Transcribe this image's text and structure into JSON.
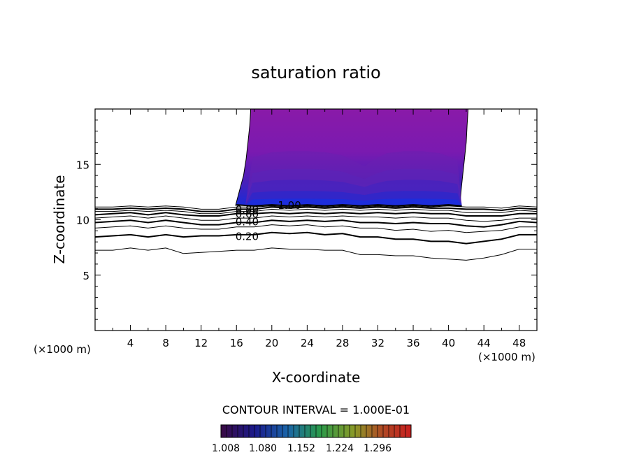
{
  "chart_data": {
    "type": "contour",
    "title": "saturation ratio",
    "xlabel": "X-coordinate",
    "ylabel": "Z-coordinate",
    "x_unit": "(×1000 m)",
    "y_unit": "(×1000 m)",
    "xlim": [
      0,
      50
    ],
    "ylim": [
      0,
      20
    ],
    "x_ticks": [
      4,
      8,
      12,
      16,
      20,
      24,
      28,
      32,
      36,
      40,
      44,
      48
    ],
    "y_ticks": [
      5,
      10,
      15
    ],
    "contour_interval_label": "CONTOUR INTERVAL = 1.000E-01",
    "contour_labels": [
      {
        "text": "1.00",
        "x": 22.0,
        "y": 11.3
      },
      {
        "text": "0.80",
        "x": 17.2,
        "y": 10.9
      },
      {
        "text": "0.60",
        "x": 17.2,
        "y": 10.5
      },
      {
        "text": "0.40",
        "x": 17.2,
        "y": 9.8
      },
      {
        "text": "0.20",
        "x": 17.2,
        "y": 8.5
      }
    ],
    "contour_levels": [
      {
        "level": 0.1,
        "weight": "thin",
        "x": [
          0,
          2,
          4,
          6,
          8,
          10,
          12,
          14,
          16,
          18,
          20,
          22,
          24,
          26,
          28,
          30,
          32,
          34,
          36,
          38,
          40,
          42,
          44,
          46,
          48,
          50
        ],
        "z": [
          7.2,
          7.3,
          7.4,
          7.3,
          7.4,
          7.0,
          7.0,
          7.2,
          7.2,
          7.3,
          7.4,
          7.4,
          7.3,
          7.3,
          7.2,
          6.9,
          6.8,
          6.8,
          6.7,
          6.6,
          6.4,
          6.4,
          6.5,
          6.9,
          7.3,
          7.4
        ]
      },
      {
        "level": 0.2,
        "weight": "thick",
        "x": [
          0,
          2,
          4,
          6,
          8,
          10,
          12,
          14,
          16,
          18,
          20,
          22,
          24,
          26,
          28,
          30,
          32,
          34,
          36,
          38,
          40,
          42,
          44,
          46,
          48,
          50
        ],
        "z": [
          8.4,
          8.6,
          8.6,
          8.5,
          8.6,
          8.5,
          8.5,
          8.6,
          8.6,
          8.7,
          8.8,
          8.8,
          8.8,
          8.7,
          8.7,
          8.5,
          8.4,
          8.3,
          8.2,
          8.1,
          8.0,
          7.9,
          8.0,
          8.3,
          8.6,
          8.7
        ]
      },
      {
        "level": 0.3,
        "weight": "thin",
        "x": [
          0,
          2,
          4,
          6,
          8,
          10,
          12,
          14,
          16,
          18,
          20,
          22,
          24,
          26,
          28,
          30,
          32,
          34,
          36,
          38,
          40,
          42,
          44,
          46,
          48,
          50
        ],
        "z": [
          9.2,
          9.4,
          9.4,
          9.3,
          9.4,
          9.3,
          9.1,
          9.2,
          9.3,
          9.4,
          9.5,
          9.5,
          9.5,
          9.4,
          9.4,
          9.3,
          9.2,
          9.1,
          9.1,
          9.0,
          9.0,
          8.9,
          8.9,
          9.1,
          9.3,
          9.4
        ]
      },
      {
        "level": 0.4,
        "weight": "thick",
        "x": [
          0,
          2,
          4,
          6,
          8,
          10,
          12,
          14,
          16,
          18,
          20,
          22,
          24,
          26,
          28,
          30,
          32,
          34,
          36,
          38,
          40,
          42,
          44,
          46,
          48,
          50
        ],
        "z": [
          9.7,
          9.9,
          9.9,
          9.8,
          9.9,
          9.8,
          9.5,
          9.6,
          9.7,
          9.8,
          9.9,
          9.9,
          9.9,
          9.9,
          9.9,
          9.8,
          9.7,
          9.7,
          9.7,
          9.7,
          9.6,
          9.5,
          9.3,
          9.6,
          9.8,
          9.8
        ]
      },
      {
        "level": 0.5,
        "weight": "thin",
        "x": [
          0,
          2,
          4,
          6,
          8,
          10,
          12,
          14,
          16,
          18,
          20,
          22,
          24,
          26,
          28,
          30,
          32,
          34,
          36,
          38,
          40,
          42,
          44,
          46,
          48,
          50
        ],
        "z": [
          10.1,
          10.3,
          10.3,
          10.2,
          10.3,
          10.2,
          9.9,
          10.0,
          10.1,
          10.2,
          10.3,
          10.3,
          10.3,
          10.3,
          10.3,
          10.3,
          10.2,
          10.2,
          10.2,
          10.2,
          10.1,
          10.0,
          9.8,
          10.0,
          10.1,
          10.2
        ]
      },
      {
        "level": 0.6,
        "weight": "thick",
        "x": [
          0,
          2,
          4,
          6,
          8,
          10,
          12,
          14,
          16,
          18,
          20,
          22,
          24,
          26,
          28,
          30,
          32,
          34,
          36,
          38,
          40,
          42,
          44,
          46,
          48,
          50
        ],
        "z": [
          10.4,
          10.6,
          10.6,
          10.5,
          10.6,
          10.5,
          10.3,
          10.4,
          10.5,
          10.6,
          10.6,
          10.6,
          10.6,
          10.6,
          10.6,
          10.6,
          10.6,
          10.6,
          10.6,
          10.6,
          10.5,
          10.4,
          10.3,
          10.4,
          10.5,
          10.6
        ]
      },
      {
        "level": 0.7,
        "weight": "thin",
        "x": [
          0,
          2,
          4,
          6,
          8,
          10,
          12,
          14,
          16,
          18,
          20,
          22,
          24,
          26,
          28,
          30,
          32,
          34,
          36,
          38,
          40,
          42,
          44,
          46,
          48,
          50
        ],
        "z": [
          10.7,
          10.8,
          10.8,
          10.8,
          10.8,
          10.8,
          10.5,
          10.6,
          10.7,
          10.8,
          10.9,
          10.9,
          10.9,
          10.9,
          10.9,
          10.9,
          10.9,
          10.9,
          10.9,
          10.9,
          10.8,
          10.7,
          10.6,
          10.7,
          10.8,
          10.8
        ]
      },
      {
        "level": 0.8,
        "weight": "thick",
        "x": [
          0,
          2,
          4,
          6,
          8,
          10,
          12,
          14,
          16,
          18,
          20,
          22,
          24,
          26,
          28,
          30,
          32,
          34,
          36,
          38,
          40,
          42,
          44,
          46,
          48,
          50
        ],
        "z": [
          10.9,
          11.0,
          11.0,
          11.0,
          11.0,
          11.0,
          10.7,
          10.8,
          10.9,
          11.0,
          11.1,
          11.1,
          11.1,
          11.1,
          11.1,
          11.1,
          11.1,
          11.1,
          11.1,
          11.1,
          11.0,
          11.0,
          10.9,
          10.9,
          11.0,
          11.0
        ]
      },
      {
        "level": 0.9,
        "weight": "thin",
        "x": [
          0,
          2,
          4,
          6,
          8,
          10,
          12,
          14,
          16,
          18,
          20,
          22,
          24,
          26,
          28,
          30,
          32,
          34,
          36,
          38,
          40,
          42,
          44,
          46,
          48,
          50
        ],
        "z": [
          11.1,
          11.2,
          11.2,
          11.2,
          11.2,
          11.2,
          10.9,
          11.0,
          11.1,
          11.2,
          11.2,
          11.2,
          11.2,
          11.2,
          11.2,
          11.2,
          11.2,
          11.2,
          11.2,
          11.2,
          11.2,
          11.2,
          11.1,
          11.1,
          11.2,
          11.2
        ]
      },
      {
        "level": 1.0,
        "weight": "thick",
        "x": [
          16,
          18,
          20,
          22,
          24,
          26,
          28,
          30,
          32,
          34,
          36,
          38,
          40,
          41.5
        ],
        "z": [
          11.3,
          11.3,
          11.3,
          11.3,
          11.3,
          11.3,
          11.3,
          11.3,
          11.3,
          11.3,
          11.3,
          11.3,
          11.3,
          11.3
        ]
      }
    ],
    "shaded_region": {
      "description_level": "> 1.0",
      "left_edge": {
        "x": [
          15.9,
          16.3,
          16.8,
          17.1,
          17.3,
          17.5,
          17.6
        ],
        "z": [
          11.3,
          12.5,
          14.0,
          15.5,
          17.0,
          18.5,
          19.8
        ]
      },
      "right_edge": {
        "x": [
          42.2,
          42.1,
          42.0,
          41.8,
          41.6,
          41.4,
          41.3
        ],
        "z": [
          19.8,
          18.5,
          17.0,
          15.5,
          14.0,
          12.5,
          11.3
        ]
      }
    },
    "colorbar": {
      "labels": [
        "1.008",
        "1.080",
        "1.152",
        "1.224",
        "1.296"
      ],
      "colors": [
        "#2a0a3a",
        "#1a1a8a",
        "#1a6aa0",
        "#2a9a40",
        "#8a9a20",
        "#b04020",
        "#c02020"
      ]
    }
  }
}
